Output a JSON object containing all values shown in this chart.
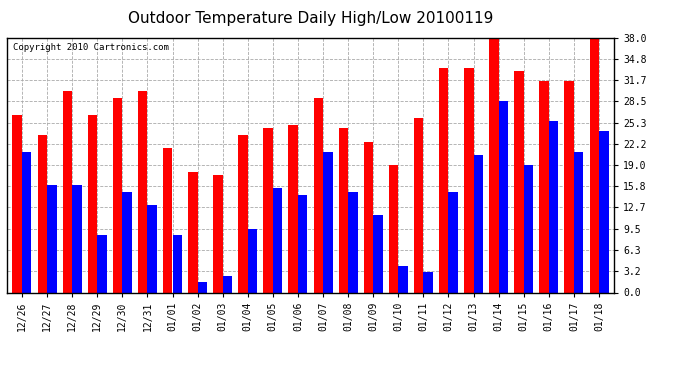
{
  "title": "Outdoor Temperature Daily High/Low 20100119",
  "copyright": "Copyright 2010 Cartronics.com",
  "dates": [
    "12/26",
    "12/27",
    "12/28",
    "12/29",
    "12/30",
    "12/31",
    "01/01",
    "01/02",
    "01/03",
    "01/04",
    "01/05",
    "01/06",
    "01/07",
    "01/08",
    "01/09",
    "01/10",
    "01/11",
    "01/12",
    "01/13",
    "01/14",
    "01/15",
    "01/16",
    "01/17",
    "01/18"
  ],
  "highs": [
    26.5,
    23.5,
    30.0,
    26.5,
    29.0,
    30.0,
    21.5,
    18.0,
    17.5,
    23.5,
    24.5,
    25.0,
    29.0,
    24.5,
    22.5,
    19.0,
    26.0,
    33.5,
    33.5,
    38.0,
    33.0,
    31.5,
    31.5,
    38.0
  ],
  "lows": [
    21.0,
    16.0,
    16.0,
    8.5,
    15.0,
    13.0,
    8.5,
    1.5,
    2.5,
    9.5,
    15.5,
    14.5,
    21.0,
    15.0,
    11.5,
    4.0,
    3.0,
    15.0,
    20.5,
    28.5,
    19.0,
    25.5,
    21.0,
    24.0
  ],
  "high_color": "#ff0000",
  "low_color": "#0000ff",
  "bg_color": "#ffffff",
  "grid_color": "#aaaaaa",
  "ylim": [
    0,
    38.0
  ],
  "yticks": [
    0.0,
    3.2,
    6.3,
    9.5,
    12.7,
    15.8,
    19.0,
    22.2,
    25.3,
    28.5,
    31.7,
    34.8,
    38.0
  ],
  "bar_width": 0.38,
  "title_fontsize": 11,
  "tick_fontsize": 7,
  "copyright_fontsize": 6.5
}
